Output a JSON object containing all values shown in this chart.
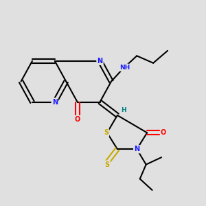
{
  "bg_color": "#e0e0e0",
  "colors": {
    "C": "#000000",
    "N": "#1a1aff",
    "O": "#ff0000",
    "S": "#c8a800",
    "H": "#008080",
    "bond": "#000000"
  },
  "lw": 1.5,
  "figsize": [
    3.0,
    3.0
  ],
  "dpi": 100
}
